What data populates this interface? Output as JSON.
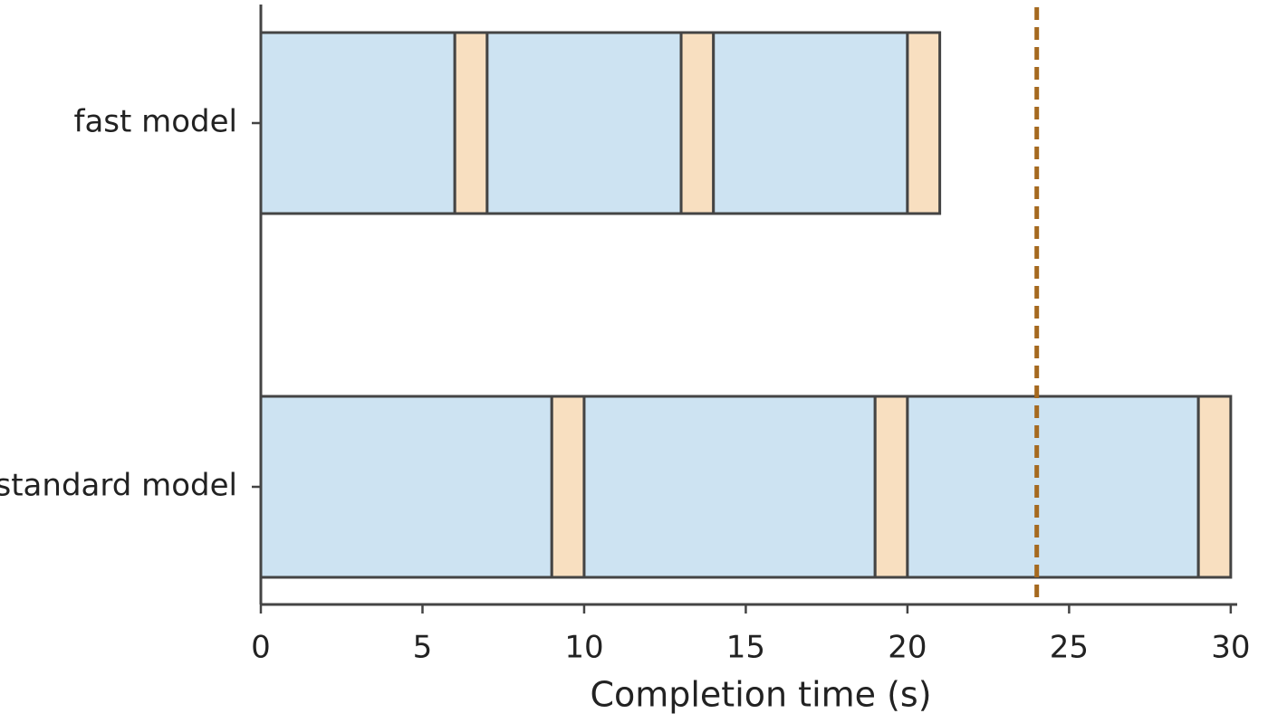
{
  "chart_data": {
    "type": "stacked-barh",
    "categories": [
      "fast model",
      "standard model"
    ],
    "series": [
      {
        "color": "#cde3f2",
        "values": [
          6,
          9
        ]
      },
      {
        "color": "#f8dfc0",
        "values": [
          1,
          1
        ]
      },
      {
        "color": "#cde3f2",
        "values": [
          6,
          9
        ]
      },
      {
        "color": "#f8dfc0",
        "values": [
          1,
          1
        ]
      },
      {
        "color": "#cde3f2",
        "values": [
          6,
          9
        ]
      },
      {
        "color": "#f8dfc0",
        "values": [
          1,
          1
        ]
      }
    ],
    "xlabel": "Completion time (s)",
    "xlim": [
      0,
      30.2
    ],
    "xticks": [
      0,
      5,
      10,
      15,
      20,
      25,
      30
    ],
    "reference_line": {
      "value": 24,
      "color": "#a5691f"
    }
  }
}
